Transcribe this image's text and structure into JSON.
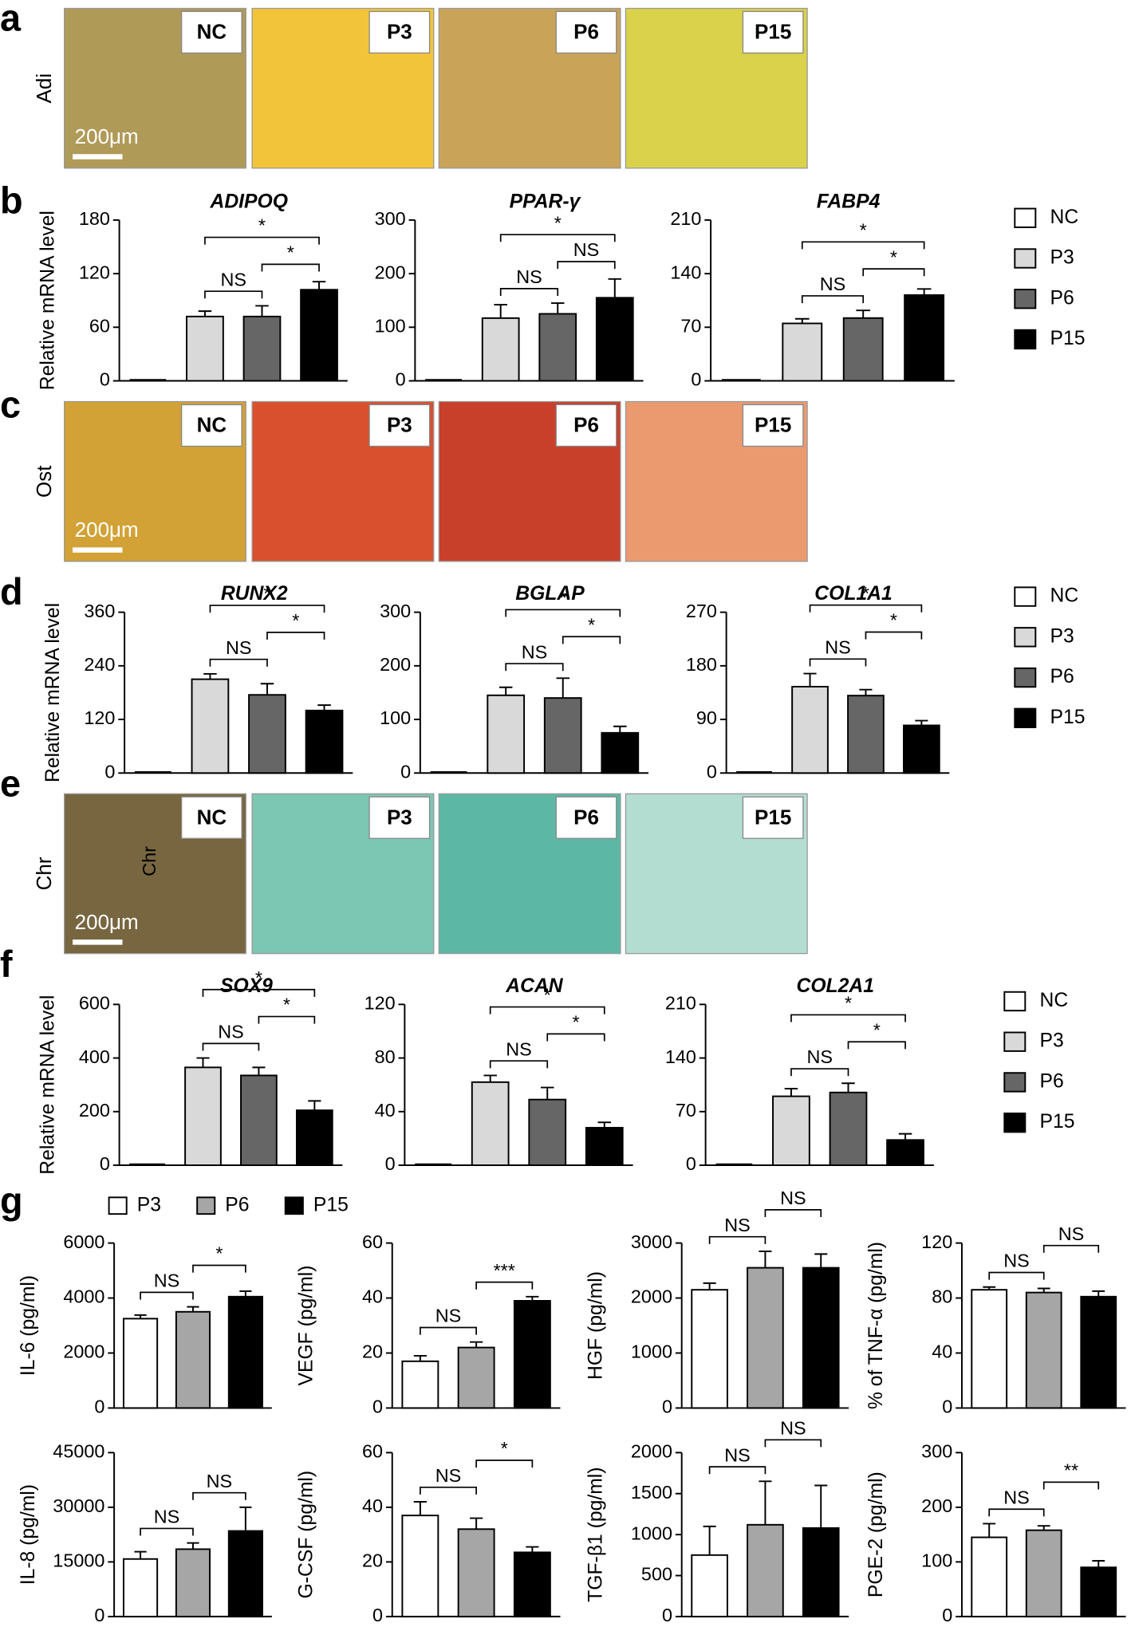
{
  "panel_letters": [
    "a",
    "b",
    "c",
    "d",
    "e",
    "f",
    "g"
  ],
  "micrographs": [
    {
      "row_label": "Adi",
      "scale_bar": "200μm",
      "labels": [
        "NC",
        "P3",
        "P6",
        "P15"
      ]
    },
    {
      "row_label": "Ost",
      "scale_bar": "200μm",
      "labels": [
        "NC",
        "P3",
        "P6",
        "P15"
      ]
    },
    {
      "row_label": "Chr",
      "inner_label": "Chr",
      "scale_bar": "200μm",
      "labels": [
        "NC",
        "P3",
        "P6",
        "P15"
      ]
    }
  ],
  "chart_data": [
    {
      "type": "bar",
      "title": "ADIPOQ",
      "ylabel": "Relative mRNA level",
      "ylim": [
        0,
        180
      ],
      "yticks": [
        0,
        60,
        120,
        180
      ],
      "series": [
        {
          "color": "#ffffff",
          "values": [
            0
          ]
        },
        {
          "color": "#d9d9d9",
          "values": [
            72
          ],
          "errors": [
            6
          ]
        },
        {
          "color": "#666666",
          "values": [
            72
          ],
          "errors": [
            12
          ]
        },
        {
          "color": "#000000",
          "values": [
            102
          ],
          "errors": [
            9
          ]
        }
      ],
      "brackets": [
        {
          "between": [
            1,
            2
          ],
          "label": "NS"
        },
        {
          "between": [
            2,
            3
          ],
          "label": "*"
        },
        {
          "between": [
            1,
            3
          ],
          "label": "*"
        }
      ]
    },
    {
      "type": "bar",
      "title": "PPAR-γ",
      "ylim": [
        0,
        300
      ],
      "yticks": [
        0,
        100,
        200,
        300
      ],
      "series": [
        {
          "color": "#ffffff",
          "values": [
            0
          ]
        },
        {
          "color": "#d9d9d9",
          "values": [
            117
          ],
          "errors": [
            25
          ]
        },
        {
          "color": "#666666",
          "values": [
            125
          ],
          "errors": [
            20
          ]
        },
        {
          "color": "#000000",
          "values": [
            155
          ],
          "errors": [
            35
          ]
        }
      ],
      "brackets": [
        {
          "between": [
            1,
            2
          ],
          "label": "NS"
        },
        {
          "between": [
            2,
            3
          ],
          "label": "NS"
        },
        {
          "between": [
            1,
            3
          ],
          "label": "*"
        }
      ]
    },
    {
      "type": "bar",
      "title": "FABP4",
      "ylim": [
        0,
        210
      ],
      "yticks": [
        0,
        70,
        140,
        210
      ],
      "legend": "right",
      "series": [
        {
          "name": "NC",
          "color": "#ffffff",
          "values": [
            0
          ]
        },
        {
          "name": "P3",
          "color": "#d9d9d9",
          "values": [
            75
          ],
          "errors": [
            6
          ]
        },
        {
          "name": "P6",
          "color": "#666666",
          "values": [
            82
          ],
          "errors": [
            10
          ]
        },
        {
          "name": "P15",
          "color": "#000000",
          "values": [
            112
          ],
          "errors": [
            8
          ]
        }
      ],
      "brackets": [
        {
          "between": [
            1,
            2
          ],
          "label": "NS"
        },
        {
          "between": [
            2,
            3
          ],
          "label": "*"
        },
        {
          "between": [
            1,
            3
          ],
          "label": "*"
        }
      ]
    },
    {
      "type": "bar",
      "title": "RUNX2",
      "ylabel": "Relative mRNA level",
      "ylim": [
        0,
        360
      ],
      "yticks": [
        0,
        120,
        240,
        360
      ],
      "series": [
        {
          "color": "#ffffff",
          "values": [
            0
          ]
        },
        {
          "color": "#d9d9d9",
          "values": [
            210
          ],
          "errors": [
            12
          ]
        },
        {
          "color": "#666666",
          "values": [
            175
          ],
          "errors": [
            25
          ]
        },
        {
          "color": "#000000",
          "values": [
            140
          ],
          "errors": [
            12
          ]
        }
      ],
      "brackets": [
        {
          "between": [
            1,
            2
          ],
          "label": "NS"
        },
        {
          "between": [
            2,
            3
          ],
          "label": "*"
        },
        {
          "between": [
            1,
            3
          ],
          "label": "*"
        }
      ]
    },
    {
      "type": "bar",
      "title": "BGLAP",
      "ylim": [
        0,
        300
      ],
      "yticks": [
        0,
        100,
        200,
        300
      ],
      "series": [
        {
          "color": "#ffffff",
          "values": [
            0
          ]
        },
        {
          "color": "#d9d9d9",
          "values": [
            145
          ],
          "errors": [
            15
          ]
        },
        {
          "color": "#666666",
          "values": [
            140
          ],
          "errors": [
            37
          ]
        },
        {
          "color": "#000000",
          "values": [
            75
          ],
          "errors": [
            12
          ]
        }
      ],
      "brackets": [
        {
          "between": [
            1,
            2
          ],
          "label": "NS"
        },
        {
          "between": [
            2,
            3
          ],
          "label": "*"
        },
        {
          "between": [
            1,
            3
          ],
          "label": "*"
        }
      ]
    },
    {
      "type": "bar",
      "title": "COL1A1",
      "ylim": [
        0,
        270
      ],
      "yticks": [
        0,
        90,
        180,
        270
      ],
      "legend": "right",
      "series": [
        {
          "name": "NC",
          "color": "#ffffff",
          "values": [
            0
          ]
        },
        {
          "name": "P3",
          "color": "#d9d9d9",
          "values": [
            145
          ],
          "errors": [
            22
          ]
        },
        {
          "name": "P6",
          "color": "#666666",
          "values": [
            130
          ],
          "errors": [
            10
          ]
        },
        {
          "name": "P15",
          "color": "#000000",
          "values": [
            80
          ],
          "errors": [
            8
          ]
        }
      ],
      "brackets": [
        {
          "between": [
            1,
            2
          ],
          "label": "NS"
        },
        {
          "between": [
            2,
            3
          ],
          "label": "*"
        },
        {
          "between": [
            1,
            3
          ],
          "label": "*"
        }
      ]
    },
    {
      "type": "bar",
      "title": "SOX9",
      "ylabel": "Relative mRNA level",
      "ylim": [
        0,
        600
      ],
      "yticks": [
        0,
        200,
        400,
        600
      ],
      "series": [
        {
          "color": "#ffffff",
          "values": [
            0
          ]
        },
        {
          "color": "#d9d9d9",
          "values": [
            365
          ],
          "errors": [
            35
          ]
        },
        {
          "color": "#666666",
          "values": [
            335
          ],
          "errors": [
            30
          ]
        },
        {
          "color": "#000000",
          "values": [
            205
          ],
          "errors": [
            35
          ]
        }
      ],
      "brackets": [
        {
          "between": [
            1,
            2
          ],
          "label": "NS"
        },
        {
          "between": [
            2,
            3
          ],
          "label": "*"
        },
        {
          "between": [
            1,
            3
          ],
          "label": "*"
        }
      ]
    },
    {
      "type": "bar",
      "title": "ACAN",
      "ylim": [
        0,
        120
      ],
      "yticks": [
        0,
        40,
        80,
        120
      ],
      "series": [
        {
          "color": "#ffffff",
          "values": [
            0
          ]
        },
        {
          "color": "#d9d9d9",
          "values": [
            62
          ],
          "errors": [
            5
          ]
        },
        {
          "color": "#666666",
          "values": [
            49
          ],
          "errors": [
            9
          ]
        },
        {
          "color": "#000000",
          "values": [
            28
          ],
          "errors": [
            4
          ]
        }
      ],
      "brackets": [
        {
          "between": [
            1,
            2
          ],
          "label": "NS"
        },
        {
          "between": [
            2,
            3
          ],
          "label": "*"
        },
        {
          "between": [
            1,
            3
          ],
          "label": "*"
        }
      ]
    },
    {
      "type": "bar",
      "title": "COL2A1",
      "ylim": [
        0,
        210
      ],
      "yticks": [
        0,
        70,
        140,
        210
      ],
      "legend": "right",
      "series": [
        {
          "name": "NC",
          "color": "#ffffff",
          "values": [
            0
          ]
        },
        {
          "name": "P3",
          "color": "#d9d9d9",
          "values": [
            90
          ],
          "errors": [
            10
          ]
        },
        {
          "name": "P6",
          "color": "#666666",
          "values": [
            95
          ],
          "errors": [
            12
          ]
        },
        {
          "name": "P15",
          "color": "#000000",
          "values": [
            33
          ],
          "errors": [
            8
          ]
        }
      ],
      "brackets": [
        {
          "between": [
            1,
            2
          ],
          "label": "NS"
        },
        {
          "between": [
            2,
            3
          ],
          "label": "*"
        },
        {
          "between": [
            1,
            3
          ],
          "label": "*"
        }
      ]
    },
    {
      "type": "bar",
      "ylabel": "IL-6  (pg/ml)",
      "ylim": [
        0,
        6000
      ],
      "yticks": [
        0,
        2000,
        4000,
        6000
      ],
      "legend": "top",
      "series": [
        {
          "name": "P3",
          "color": "#ffffff",
          "values": [
            3250
          ],
          "errors": [
            130
          ]
        },
        {
          "name": "P6",
          "color": "#a6a6a6",
          "values": [
            3500
          ],
          "errors": [
            180
          ]
        },
        {
          "name": "P15",
          "color": "#000000",
          "values": [
            4050
          ],
          "errors": [
            200
          ]
        }
      ],
      "brackets": [
        {
          "between": [
            0,
            1
          ],
          "label": "NS"
        },
        {
          "between": [
            1,
            2
          ],
          "label": "*"
        }
      ]
    },
    {
      "type": "bar",
      "ylabel": "VEGF  (pg/ml)",
      "ylim": [
        0,
        60
      ],
      "yticks": [
        0,
        20,
        40,
        60
      ],
      "series": [
        {
          "color": "#ffffff",
          "values": [
            17
          ],
          "errors": [
            2
          ]
        },
        {
          "color": "#a6a6a6",
          "values": [
            22
          ],
          "errors": [
            2
          ]
        },
        {
          "color": "#000000",
          "values": [
            39
          ],
          "errors": [
            1.5
          ]
        }
      ],
      "brackets": [
        {
          "between": [
            0,
            1
          ],
          "label": "NS"
        },
        {
          "between": [
            1,
            2
          ],
          "label": "***"
        }
      ]
    },
    {
      "type": "bar",
      "ylabel": "HGF  (pg/ml)",
      "ylim": [
        0,
        3000
      ],
      "yticks": [
        0,
        1000,
        2000,
        3000
      ],
      "series": [
        {
          "color": "#ffffff",
          "values": [
            2150
          ],
          "errors": [
            120
          ]
        },
        {
          "color": "#a6a6a6",
          "values": [
            2550
          ],
          "errors": [
            300
          ]
        },
        {
          "color": "#000000",
          "values": [
            2550
          ],
          "errors": [
            250
          ]
        }
      ],
      "brackets": [
        {
          "between": [
            0,
            1
          ],
          "label": "NS"
        },
        {
          "between": [
            1,
            2
          ],
          "label": "NS"
        }
      ]
    },
    {
      "type": "bar",
      "ylabel": "% of TNF-α (pg/ml)",
      "ylim": [
        0,
        120
      ],
      "yticks": [
        0,
        40,
        80,
        120
      ],
      "series": [
        {
          "color": "#ffffff",
          "values": [
            86
          ],
          "errors": [
            2
          ]
        },
        {
          "color": "#a6a6a6",
          "values": [
            84
          ],
          "errors": [
            3
          ]
        },
        {
          "color": "#000000",
          "values": [
            81
          ],
          "errors": [
            4
          ]
        }
      ],
      "brackets": [
        {
          "between": [
            0,
            1
          ],
          "label": "NS"
        },
        {
          "between": [
            1,
            2
          ],
          "label": "NS"
        }
      ]
    },
    {
      "type": "bar",
      "ylabel": "IL-8  (pg/ml)",
      "ylim": [
        0,
        45000
      ],
      "yticks": [
        0,
        15000,
        30000,
        45000
      ],
      "series": [
        {
          "color": "#ffffff",
          "values": [
            15800
          ],
          "errors": [
            2000
          ]
        },
        {
          "color": "#a6a6a6",
          "values": [
            18500
          ],
          "errors": [
            1700
          ]
        },
        {
          "color": "#000000",
          "values": [
            23500
          ],
          "errors": [
            6500
          ]
        }
      ],
      "brackets": [
        {
          "between": [
            0,
            1
          ],
          "label": "NS"
        },
        {
          "between": [
            1,
            2
          ],
          "label": "NS"
        }
      ]
    },
    {
      "type": "bar",
      "ylabel": "G-CSF  (pg/ml)",
      "ylim": [
        0,
        60
      ],
      "yticks": [
        0,
        20,
        40,
        60
      ],
      "series": [
        {
          "color": "#ffffff",
          "values": [
            37
          ],
          "errors": [
            5
          ]
        },
        {
          "color": "#a6a6a6",
          "values": [
            32
          ],
          "errors": [
            4
          ]
        },
        {
          "color": "#000000",
          "values": [
            23.5
          ],
          "errors": [
            2
          ]
        }
      ],
      "brackets": [
        {
          "between": [
            0,
            1
          ],
          "label": "NS"
        },
        {
          "between": [
            1,
            2
          ],
          "label": "*"
        }
      ]
    },
    {
      "type": "bar",
      "ylabel": "TGF-β1  (pg/ml)",
      "ylim": [
        0,
        2000
      ],
      "yticks": [
        0,
        500,
        1000,
        1500,
        2000
      ],
      "series": [
        {
          "color": "#ffffff",
          "values": [
            750
          ],
          "errors": [
            350
          ]
        },
        {
          "color": "#a6a6a6",
          "values": [
            1120
          ],
          "errors": [
            530
          ]
        },
        {
          "color": "#000000",
          "values": [
            1080
          ],
          "errors": [
            520
          ]
        }
      ],
      "brackets": [
        {
          "between": [
            0,
            1
          ],
          "label": "NS"
        },
        {
          "between": [
            1,
            2
          ],
          "label": "NS"
        }
      ]
    },
    {
      "type": "bar",
      "ylabel": "PGE-2  (pg/ml)",
      "ylim": [
        0,
        300
      ],
      "yticks": [
        0,
        100,
        200,
        300
      ],
      "series": [
        {
          "color": "#ffffff",
          "values": [
            145
          ],
          "errors": [
            25
          ]
        },
        {
          "color": "#a6a6a6",
          "values": [
            158
          ],
          "errors": [
            8
          ]
        },
        {
          "color": "#000000",
          "values": [
            90
          ],
          "errors": [
            12
          ]
        }
      ],
      "brackets": [
        {
          "between": [
            0,
            1
          ],
          "label": "NS"
        },
        {
          "between": [
            1,
            2
          ],
          "label": "**"
        }
      ]
    }
  ]
}
